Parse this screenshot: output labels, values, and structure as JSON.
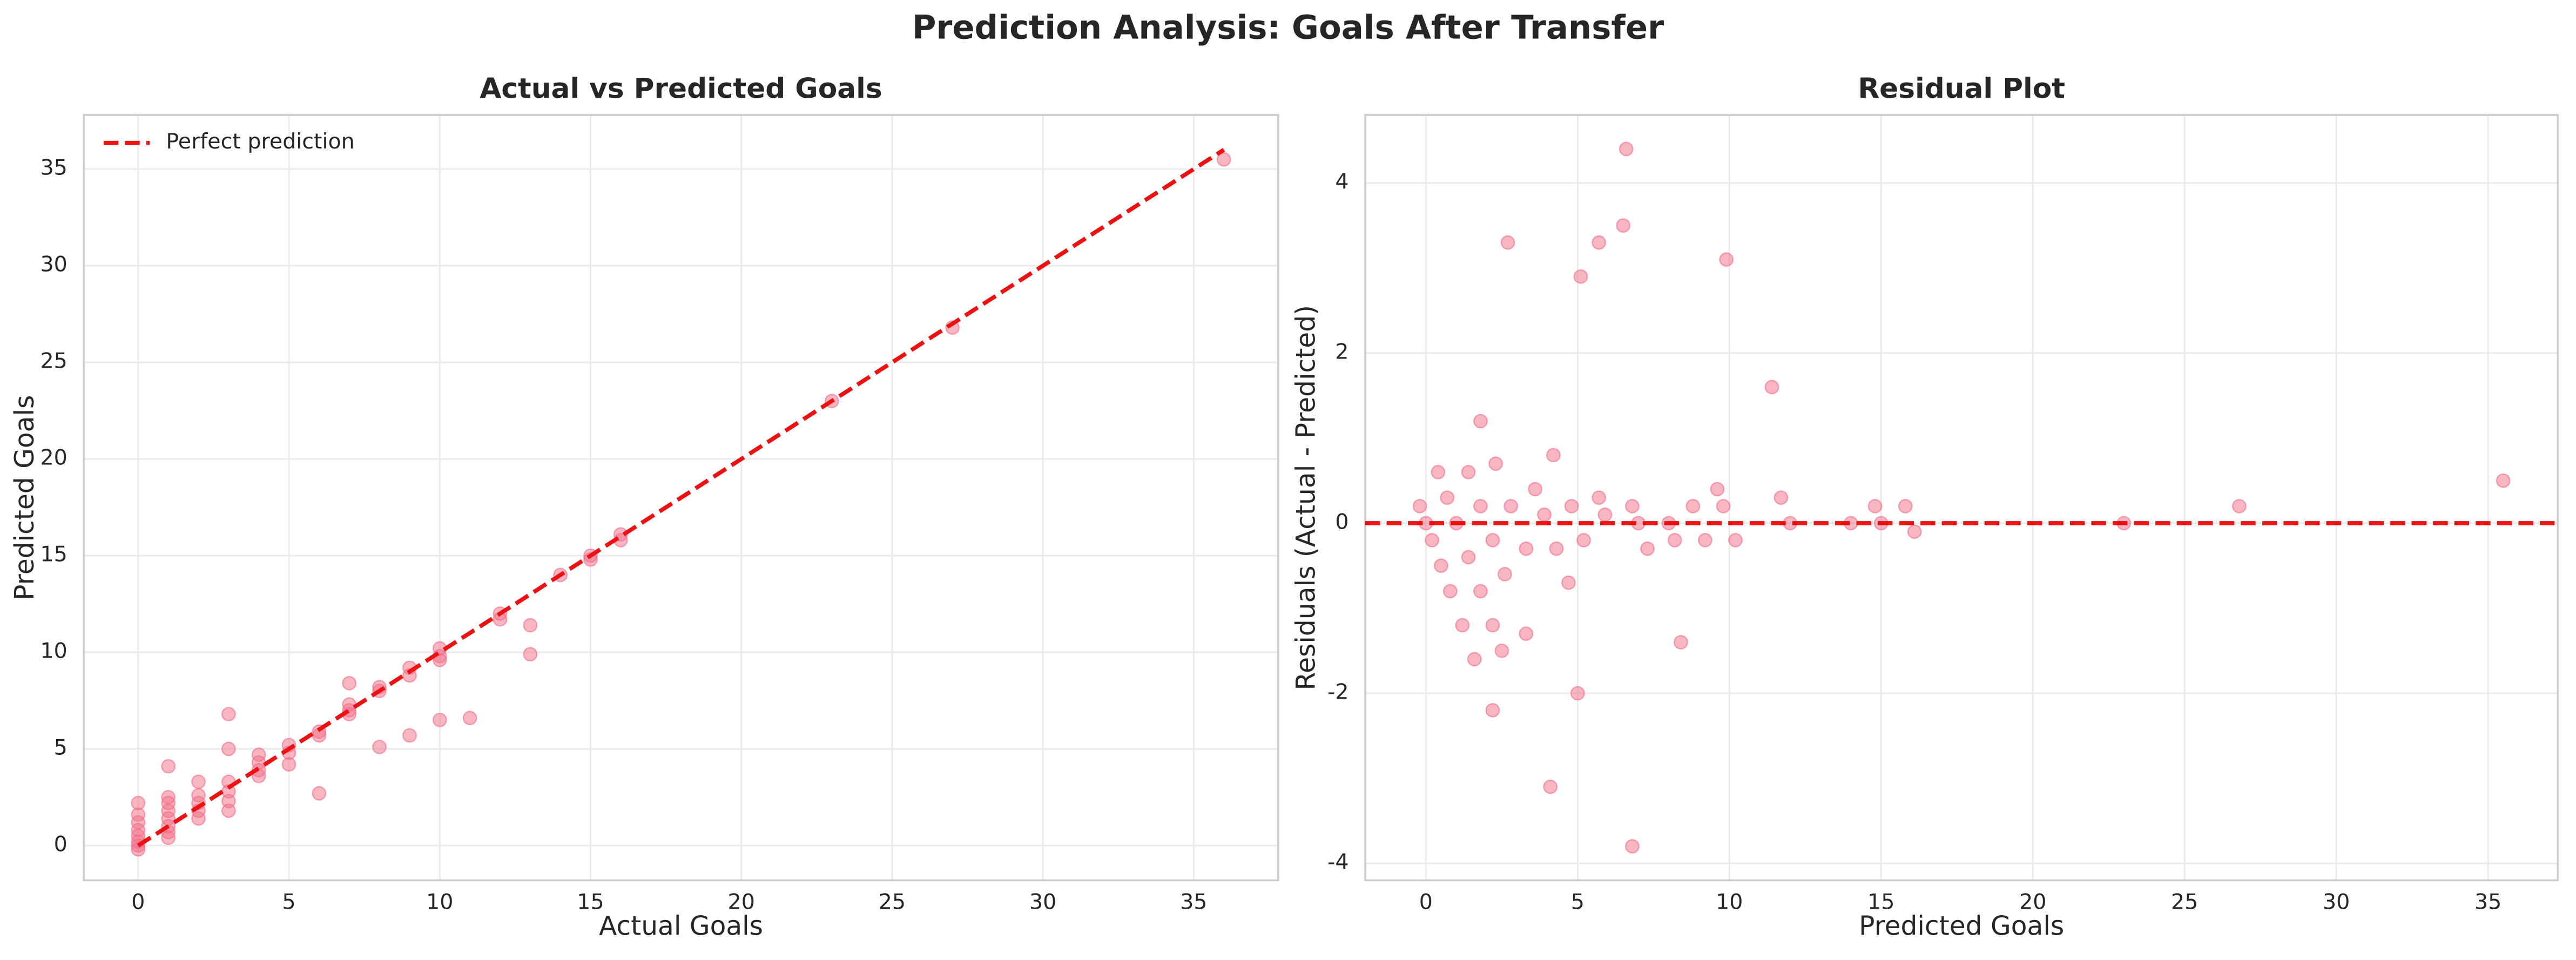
{
  "title": "Prediction Analysis: Goals After Transfer",
  "chart_data": [
    {
      "type": "scatter",
      "title": "Actual vs Predicted Goals",
      "xlabel": "Actual Goals",
      "ylabel": "Predicted Goals",
      "xlim": [
        -1.8,
        37.8
      ],
      "ylim": [
        -1.8,
        37.8
      ],
      "xticks": [
        0,
        5,
        10,
        15,
        20,
        25,
        30,
        35
      ],
      "yticks": [
        0,
        5,
        10,
        15,
        20,
        25,
        30,
        35
      ],
      "grid": true,
      "legend": "upper left",
      "series": [
        {
          "name": "Perfect prediction",
          "type": "line",
          "color": "#ee1111",
          "x": [
            0,
            36
          ],
          "values": [
            0,
            36
          ]
        },
        {
          "type": "scatter",
          "color": "#f26d87",
          "x": [
            0,
            0,
            0,
            0,
            0,
            0,
            0,
            0,
            1,
            1,
            1,
            1,
            1,
            1,
            1,
            1,
            2,
            2,
            2,
            2,
            2,
            3,
            3,
            3,
            3,
            3,
            3,
            4,
            4,
            4,
            4,
            5,
            5,
            5,
            6,
            6,
            6,
            7,
            7,
            7,
            7,
            8,
            8,
            8,
            9,
            9,
            9,
            10,
            10,
            10,
            10,
            11,
            12,
            12,
            13,
            13,
            14,
            15,
            15,
            16,
            16,
            23,
            27,
            36
          ],
          "values": [
            2.2,
            1.6,
            1.2,
            0.8,
            0.5,
            0.2,
            0,
            -0.2,
            4.1,
            2.5,
            2.2,
            1.8,
            1.4,
            1.0,
            0.7,
            0.4,
            3.3,
            2.6,
            2.2,
            1.8,
            1.4,
            6.8,
            5.0,
            3.3,
            2.8,
            2.3,
            1.8,
            4.7,
            4.3,
            3.9,
            3.6,
            5.2,
            4.8,
            4.2,
            5.9,
            5.7,
            2.7,
            8.4,
            7.3,
            7.0,
            6.8,
            8.2,
            8.0,
            5.1,
            9.2,
            8.8,
            5.7,
            10.2,
            9.8,
            9.6,
            6.5,
            6.6,
            12.0,
            11.7,
            11.4,
            9.9,
            14.0,
            15.0,
            14.8,
            16.1,
            15.8,
            23.0,
            26.8,
            35.5
          ]
        }
      ]
    },
    {
      "type": "scatter",
      "title": "Residual Plot",
      "xlabel": "Predicted Goals",
      "ylabel": "Residuals (Actual - Predicted)",
      "xlim": [
        -2.0,
        37.3
      ],
      "ylim": [
        -4.2,
        4.8
      ],
      "xticks": [
        0,
        5,
        10,
        15,
        20,
        25,
        30,
        35
      ],
      "yticks": [
        -4,
        -2,
        0,
        2,
        4
      ],
      "grid": true,
      "hline": 0,
      "hline_color": "#ee1111",
      "series": [
        {
          "type": "scatter",
          "color": "#f26d87",
          "x": [
            2.2,
            1.6,
            1.2,
            0.8,
            0.5,
            0.2,
            0,
            -0.2,
            4.1,
            2.5,
            2.2,
            1.8,
            1.4,
            1.0,
            0.7,
            0.4,
            3.3,
            2.6,
            2.2,
            1.8,
            1.4,
            6.8,
            5.0,
            3.3,
            2.8,
            2.3,
            1.8,
            4.7,
            4.3,
            3.9,
            3.6,
            5.2,
            4.8,
            4.2,
            5.9,
            5.7,
            2.7,
            8.4,
            7.3,
            7.0,
            6.8,
            8.2,
            8.0,
            5.1,
            9.2,
            8.8,
            5.7,
            10.2,
            9.8,
            9.6,
            6.5,
            6.6,
            12.0,
            11.7,
            11.4,
            9.9,
            14.0,
            15.0,
            14.8,
            16.1,
            15.8,
            23.0,
            26.8,
            35.5
          ],
          "values": [
            -2.2,
            -1.6,
            -1.2,
            -0.8,
            -0.5,
            -0.2,
            0,
            0.2,
            -3.1,
            -1.5,
            -1.2,
            -0.8,
            -0.4,
            0,
            0.3,
            0.6,
            -1.3,
            -0.6,
            -0.2,
            0.2,
            0.6,
            -3.8,
            -2.0,
            -0.3,
            0.2,
            0.7,
            1.2,
            -0.7,
            -0.3,
            0.1,
            0.4,
            -0.2,
            0.2,
            0.8,
            0.1,
            0.3,
            3.3,
            -1.4,
            -0.3,
            0,
            0.2,
            -0.2,
            0,
            2.9,
            -0.2,
            0.2,
            3.3,
            -0.2,
            0.2,
            0.4,
            3.5,
            4.4,
            0,
            0.3,
            1.6,
            3.1,
            0,
            0,
            0.2,
            -0.1,
            0.2,
            0,
            0.2,
            0.5
          ]
        }
      ]
    }
  ]
}
